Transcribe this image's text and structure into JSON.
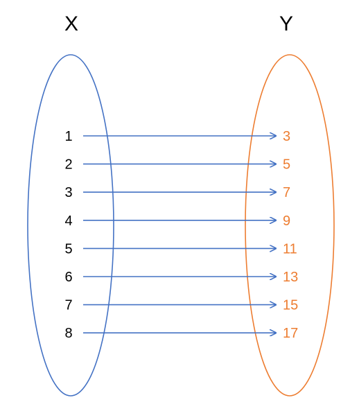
{
  "domain_set": {
    "label": "X",
    "color": "#4472c4",
    "elements": [
      "1",
      "2",
      "3",
      "4",
      "5",
      "6",
      "7",
      "8"
    ]
  },
  "codomain_set": {
    "label": "Y",
    "color": "#ed7d31",
    "elements": [
      "3",
      "5",
      "7",
      "9",
      "11",
      "13",
      "15",
      "17"
    ]
  },
  "mapping_arrow_color": "#4472c4",
  "label_color": "#000000"
}
